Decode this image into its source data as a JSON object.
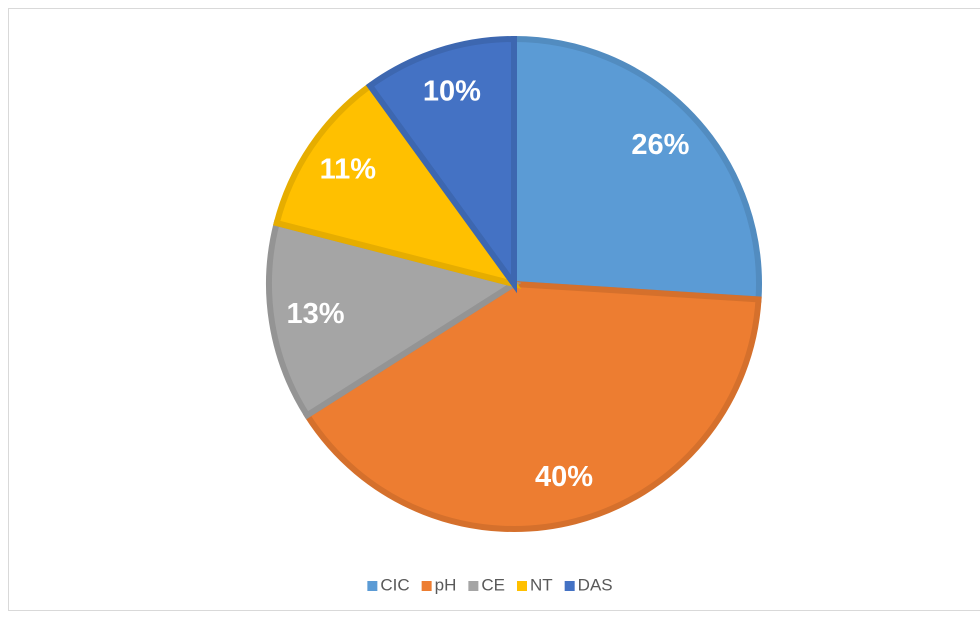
{
  "chart_data": {
    "type": "pie",
    "categories": [
      "CIC",
      "pH",
      "CE",
      "NT",
      "DAS"
    ],
    "values": [
      26,
      40,
      13,
      11,
      10
    ],
    "value_labels": [
      "26%",
      "40%",
      "13%",
      "11%",
      "10%"
    ],
    "colors": [
      "#5b9bd5",
      "#ed7d31",
      "#a5a5a5",
      "#ffc000",
      "#4472c4"
    ],
    "legend": "bottom"
  }
}
